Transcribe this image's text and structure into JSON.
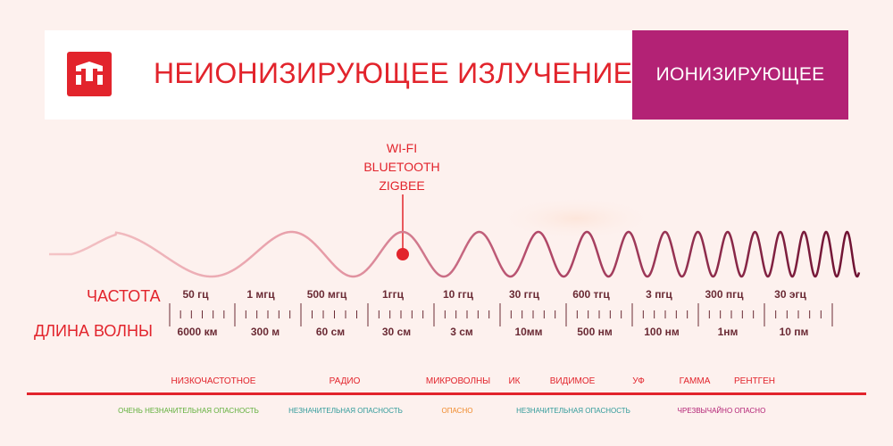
{
  "header": {
    "title": "НЕИОНИЗИРУЮЩЕЕ ИЗЛУЧЕНИЕ",
    "ionizing_label": "ИОНИЗИРУЮЩЕЕ",
    "logo_icon": "yeelight-logo-icon",
    "accent_color": "#e2242c",
    "ionizing_color": "#b32275"
  },
  "callout": {
    "lines": [
      "WI-FI",
      "BLUETOOTH",
      "ZIGBEE"
    ]
  },
  "scale": {
    "frequency_label": "ЧАСТОТА",
    "wavelength_label": "ДЛИНА ВОЛНЫ",
    "frequencies": [
      "50 гц",
      "1 мгц",
      "500 мгц",
      "1ггц",
      "10 ггц",
      "30 ггц",
      "600 тгц",
      "3 пгц",
      "300 пгц",
      "30 эгц"
    ],
    "wavelengths": [
      "6000 км",
      "300 м",
      "60 см",
      "30 см",
      "3 см",
      "10мм",
      "500 нм",
      "100 нм",
      "1нм",
      "10 пм"
    ]
  },
  "bands": [
    "НИЗКОЧАСТОТНОЕ",
    "РАДИО",
    "МИКРОВОЛНЫ",
    "ИК",
    "ВИДИМОЕ",
    "УФ",
    "ГАММА",
    "РЕНТГЕН"
  ],
  "danger_levels": [
    {
      "text": "ОЧЕНЬ НЕЗНАЧИТЕЛЬНАЯ ОПАСНОСТЬ",
      "color": "#5faf3a"
    },
    {
      "text": "НЕЗНАЧИТЕЛЬНАЯ ОПАСНОСТЬ",
      "color": "#2f9a9a"
    },
    {
      "text": "ОПАСНО",
      "color": "#f08a2a"
    },
    {
      "text": "НЕЗНАЧИТЕЛЬНАЯ ОПАСНОСТЬ",
      "color": "#2f9a9a"
    },
    {
      "text": "ЧРЕЗВЫЧАЙНО ОПАСНО",
      "color": "#b32275"
    }
  ]
}
